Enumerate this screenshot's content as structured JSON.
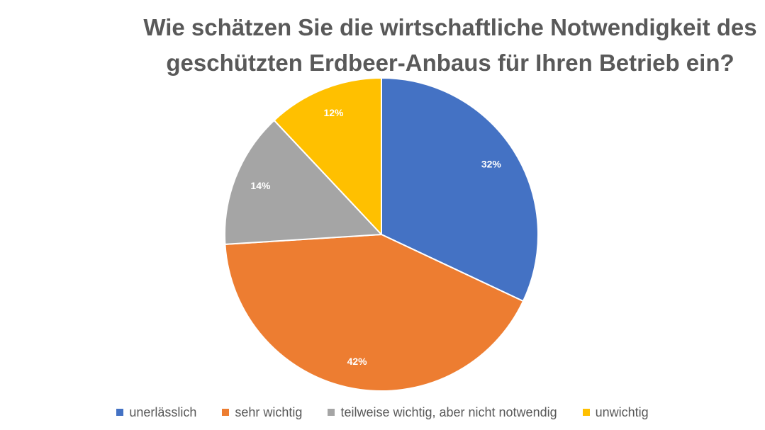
{
  "chart_data": {
    "type": "pie",
    "title_lines": [
      "Wie schätzen Sie die wirtschaftliche Notwendigkeit des",
      "geschützten Erdbeer-Anbaus für Ihren Betrieb ein?"
    ],
    "unit": "%",
    "slices": [
      {
        "label": "unerlässlich",
        "value": 32,
        "value_label": "32%",
        "color": "#4472C4"
      },
      {
        "label": "sehr wichtig",
        "value": 42,
        "value_label": "42%",
        "color": "#ED7D31"
      },
      {
        "label": "teilweise wichtig, aber nicht notwendig",
        "value": 14,
        "value_label": "14%",
        "color": "#A5A5A5"
      },
      {
        "label": "unwichtig",
        "value": 12,
        "value_label": "12%",
        "color": "#FFC000"
      }
    ],
    "start_angle": "12 o'clock",
    "direction": "clockwise",
    "legend_position": "bottom"
  }
}
